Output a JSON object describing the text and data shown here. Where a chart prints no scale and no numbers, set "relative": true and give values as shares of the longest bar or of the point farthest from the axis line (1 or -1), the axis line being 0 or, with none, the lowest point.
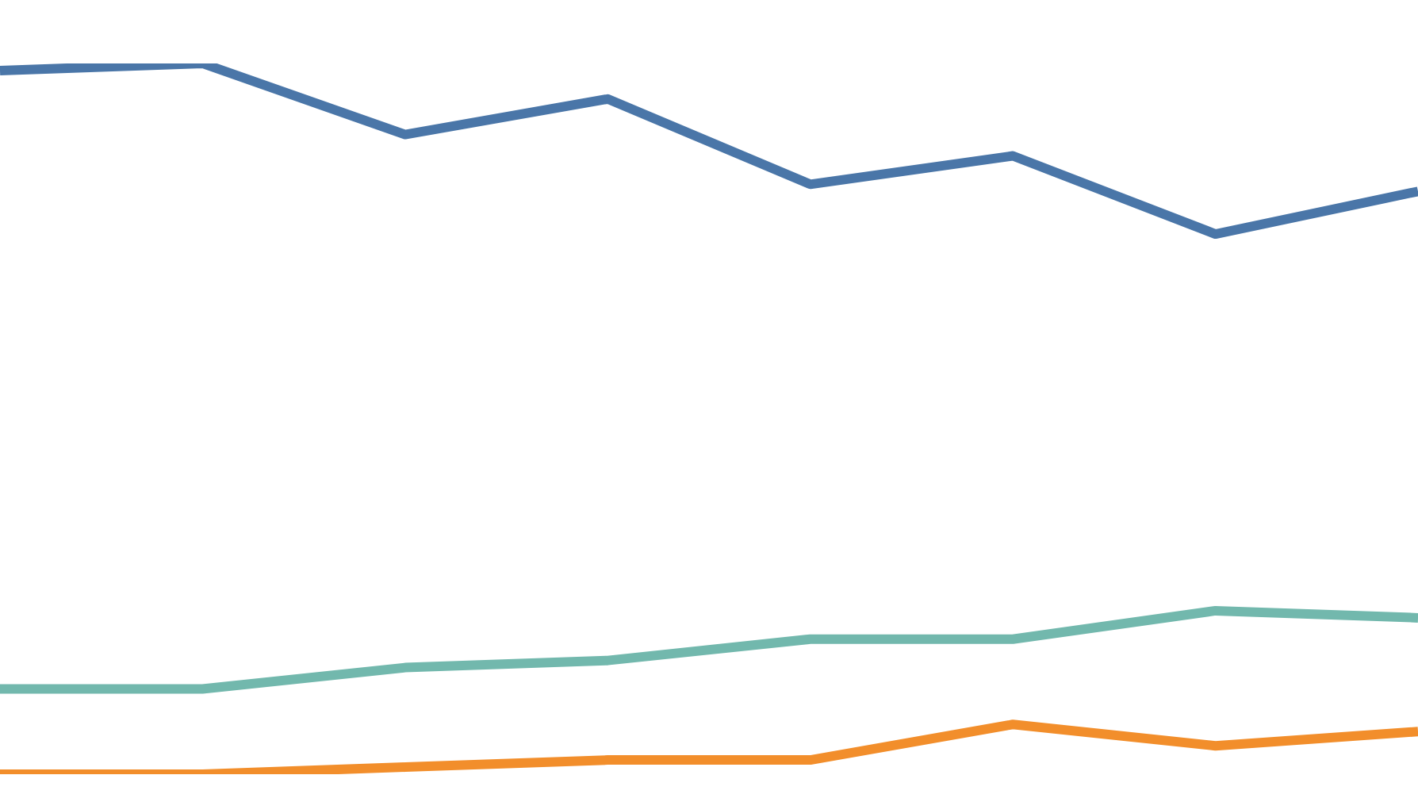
{
  "chart_data": {
    "type": "line",
    "relative": true,
    "categories": [
      null,
      null,
      null,
      null,
      null,
      null,
      null,
      null
    ],
    "marker": "none",
    "grid": false,
    "legend": false,
    "series": [
      {
        "color": "#4a76a8",
        "values": [
          0.99,
          1.0,
          0.9,
          0.95,
          0.83,
          0.87,
          0.76,
          0.82
        ]
      },
      {
        "color": "#72b8ad",
        "values": [
          0.12,
          0.12,
          0.15,
          0.16,
          0.19,
          0.19,
          0.23,
          0.22
        ]
      },
      {
        "color": "#f28e2b",
        "values": [
          0.0,
          0.0,
          0.01,
          0.02,
          0.02,
          0.07,
          0.04,
          0.06
        ]
      }
    ]
  }
}
